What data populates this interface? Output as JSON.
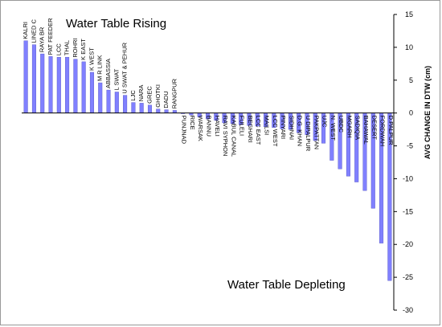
{
  "chart_data": {
    "type": "bar",
    "title_top": "Water Table Rising",
    "title_bottom": "Water Table Depleting",
    "ylabel": "AVG CHANGE IN DTW (cm)",
    "xlabel": "",
    "ylim": [
      -30,
      15
    ],
    "yticks": [
      15,
      10,
      5,
      0,
      -5,
      -10,
      -15,
      -20,
      -25,
      -30
    ],
    "bar_color": "#8080ff",
    "bar_edge_color": "#5050c0",
    "grid": false,
    "categories": [
      "KALRI",
      "LINED C",
      "RAYA BR",
      "PAT FEEDER",
      "LCC",
      "THAL",
      "ROHRI",
      "K EAST",
      "K WEST",
      "M R LINK",
      "ABBASSIA",
      "L SWAT",
      "U SWAT & PEHUR",
      "LJC",
      "NARA",
      "GREC",
      "GHOTKI",
      "DADU",
      "RANGPUR",
      "PUNJNAD",
      "RICE",
      "WARSAK",
      "BANNU",
      "HAVELI",
      "RAVI SYPHON",
      "KABUL CANAL",
      "FULELI",
      "BEGHARI",
      "LCC EAST",
      "MAILSI",
      "LCC WEST",
      "PINYARI",
      "SIDHNAI",
      "D.G. KHAN",
      "U DIPALPUR",
      "PAKPATTAN",
      "UJC",
      "N. WEST",
      "UBDC",
      "MGARH",
      "SADIQIA",
      "BAHAWAL",
      "DESERT",
      "FORDWAH",
      "D.PALPUR"
    ],
    "values": [
      11.0,
      10.4,
      9.0,
      8.6,
      8.5,
      8.5,
      8.2,
      7.8,
      6.2,
      4.6,
      3.5,
      3.2,
      2.7,
      1.6,
      1.5,
      1.2,
      0.6,
      0.5,
      0.4,
      -0.1,
      -0.3,
      -0.6,
      -0.9,
      -1.1,
      -1.5,
      -1.6,
      -1.8,
      -1.9,
      -2.0,
      -2.1,
      -2.2,
      -2.4,
      -2.5,
      -3.0,
      -3.3,
      -4.2,
      -4.6,
      -7.2,
      -8.5,
      -9.6,
      -10.5,
      -11.8,
      -14.5,
      -19.8,
      -25.5
    ]
  }
}
